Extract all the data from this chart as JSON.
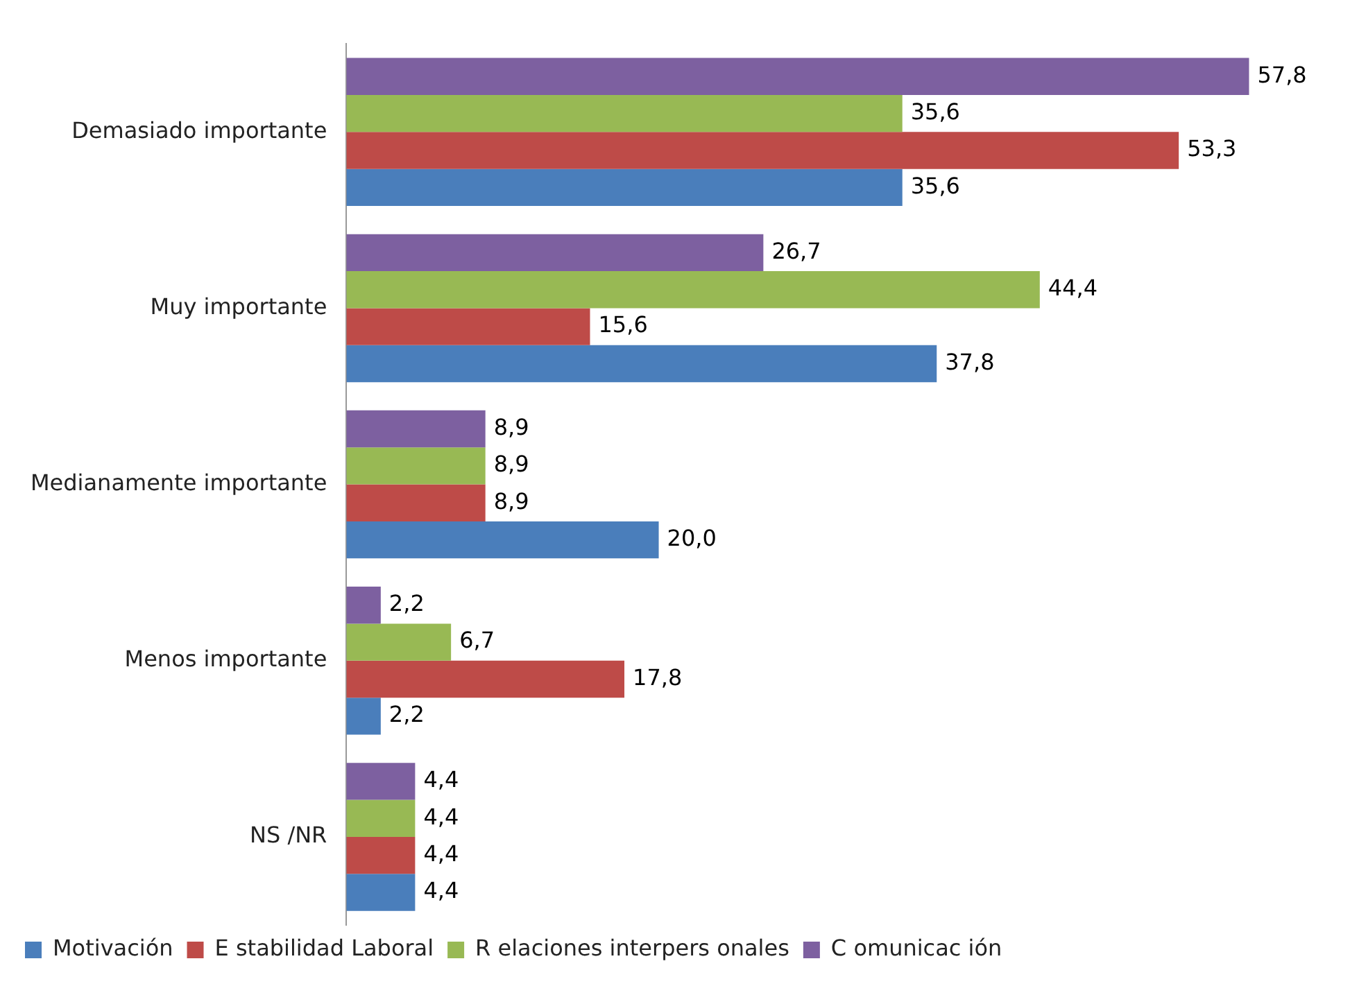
{
  "chart_data": {
    "type": "bar",
    "orientation": "horizontal",
    "categories": [
      "Demasiado importante",
      "Muy importante",
      "Medianamente importante",
      "Menos importante",
      "NS /NR"
    ],
    "series": [
      {
        "name": "Motivación",
        "color": "#4a7ebb",
        "values": [
          35.6,
          37.8,
          20.0,
          2.2,
          4.4
        ],
        "value_labels": [
          "35,6",
          "37,8",
          "20,0",
          "2,2",
          "4,4"
        ]
      },
      {
        "name": "E stabilidad Laboral",
        "color": "#be4b48",
        "values": [
          53.3,
          15.6,
          8.9,
          17.8,
          4.4
        ],
        "value_labels": [
          "53,3",
          "15,6",
          "8,9",
          "17,8",
          "4,4"
        ]
      },
      {
        "name": "R elaciones interpers onales",
        "color": "#98b954",
        "values": [
          35.6,
          44.4,
          8.9,
          6.7,
          4.4
        ],
        "value_labels": [
          "35,6",
          "44,4",
          "8,9",
          "6,7",
          "4,4"
        ]
      },
      {
        "name": "C omunicac ión",
        "color": "#7d60a0",
        "values": [
          57.8,
          26.7,
          8.9,
          2.2,
          4.4
        ],
        "value_labels": [
          "57,8",
          "26,7",
          "8,9",
          "2,2",
          "4,4"
        ]
      }
    ],
    "legend": "bottom",
    "grid": false
  }
}
